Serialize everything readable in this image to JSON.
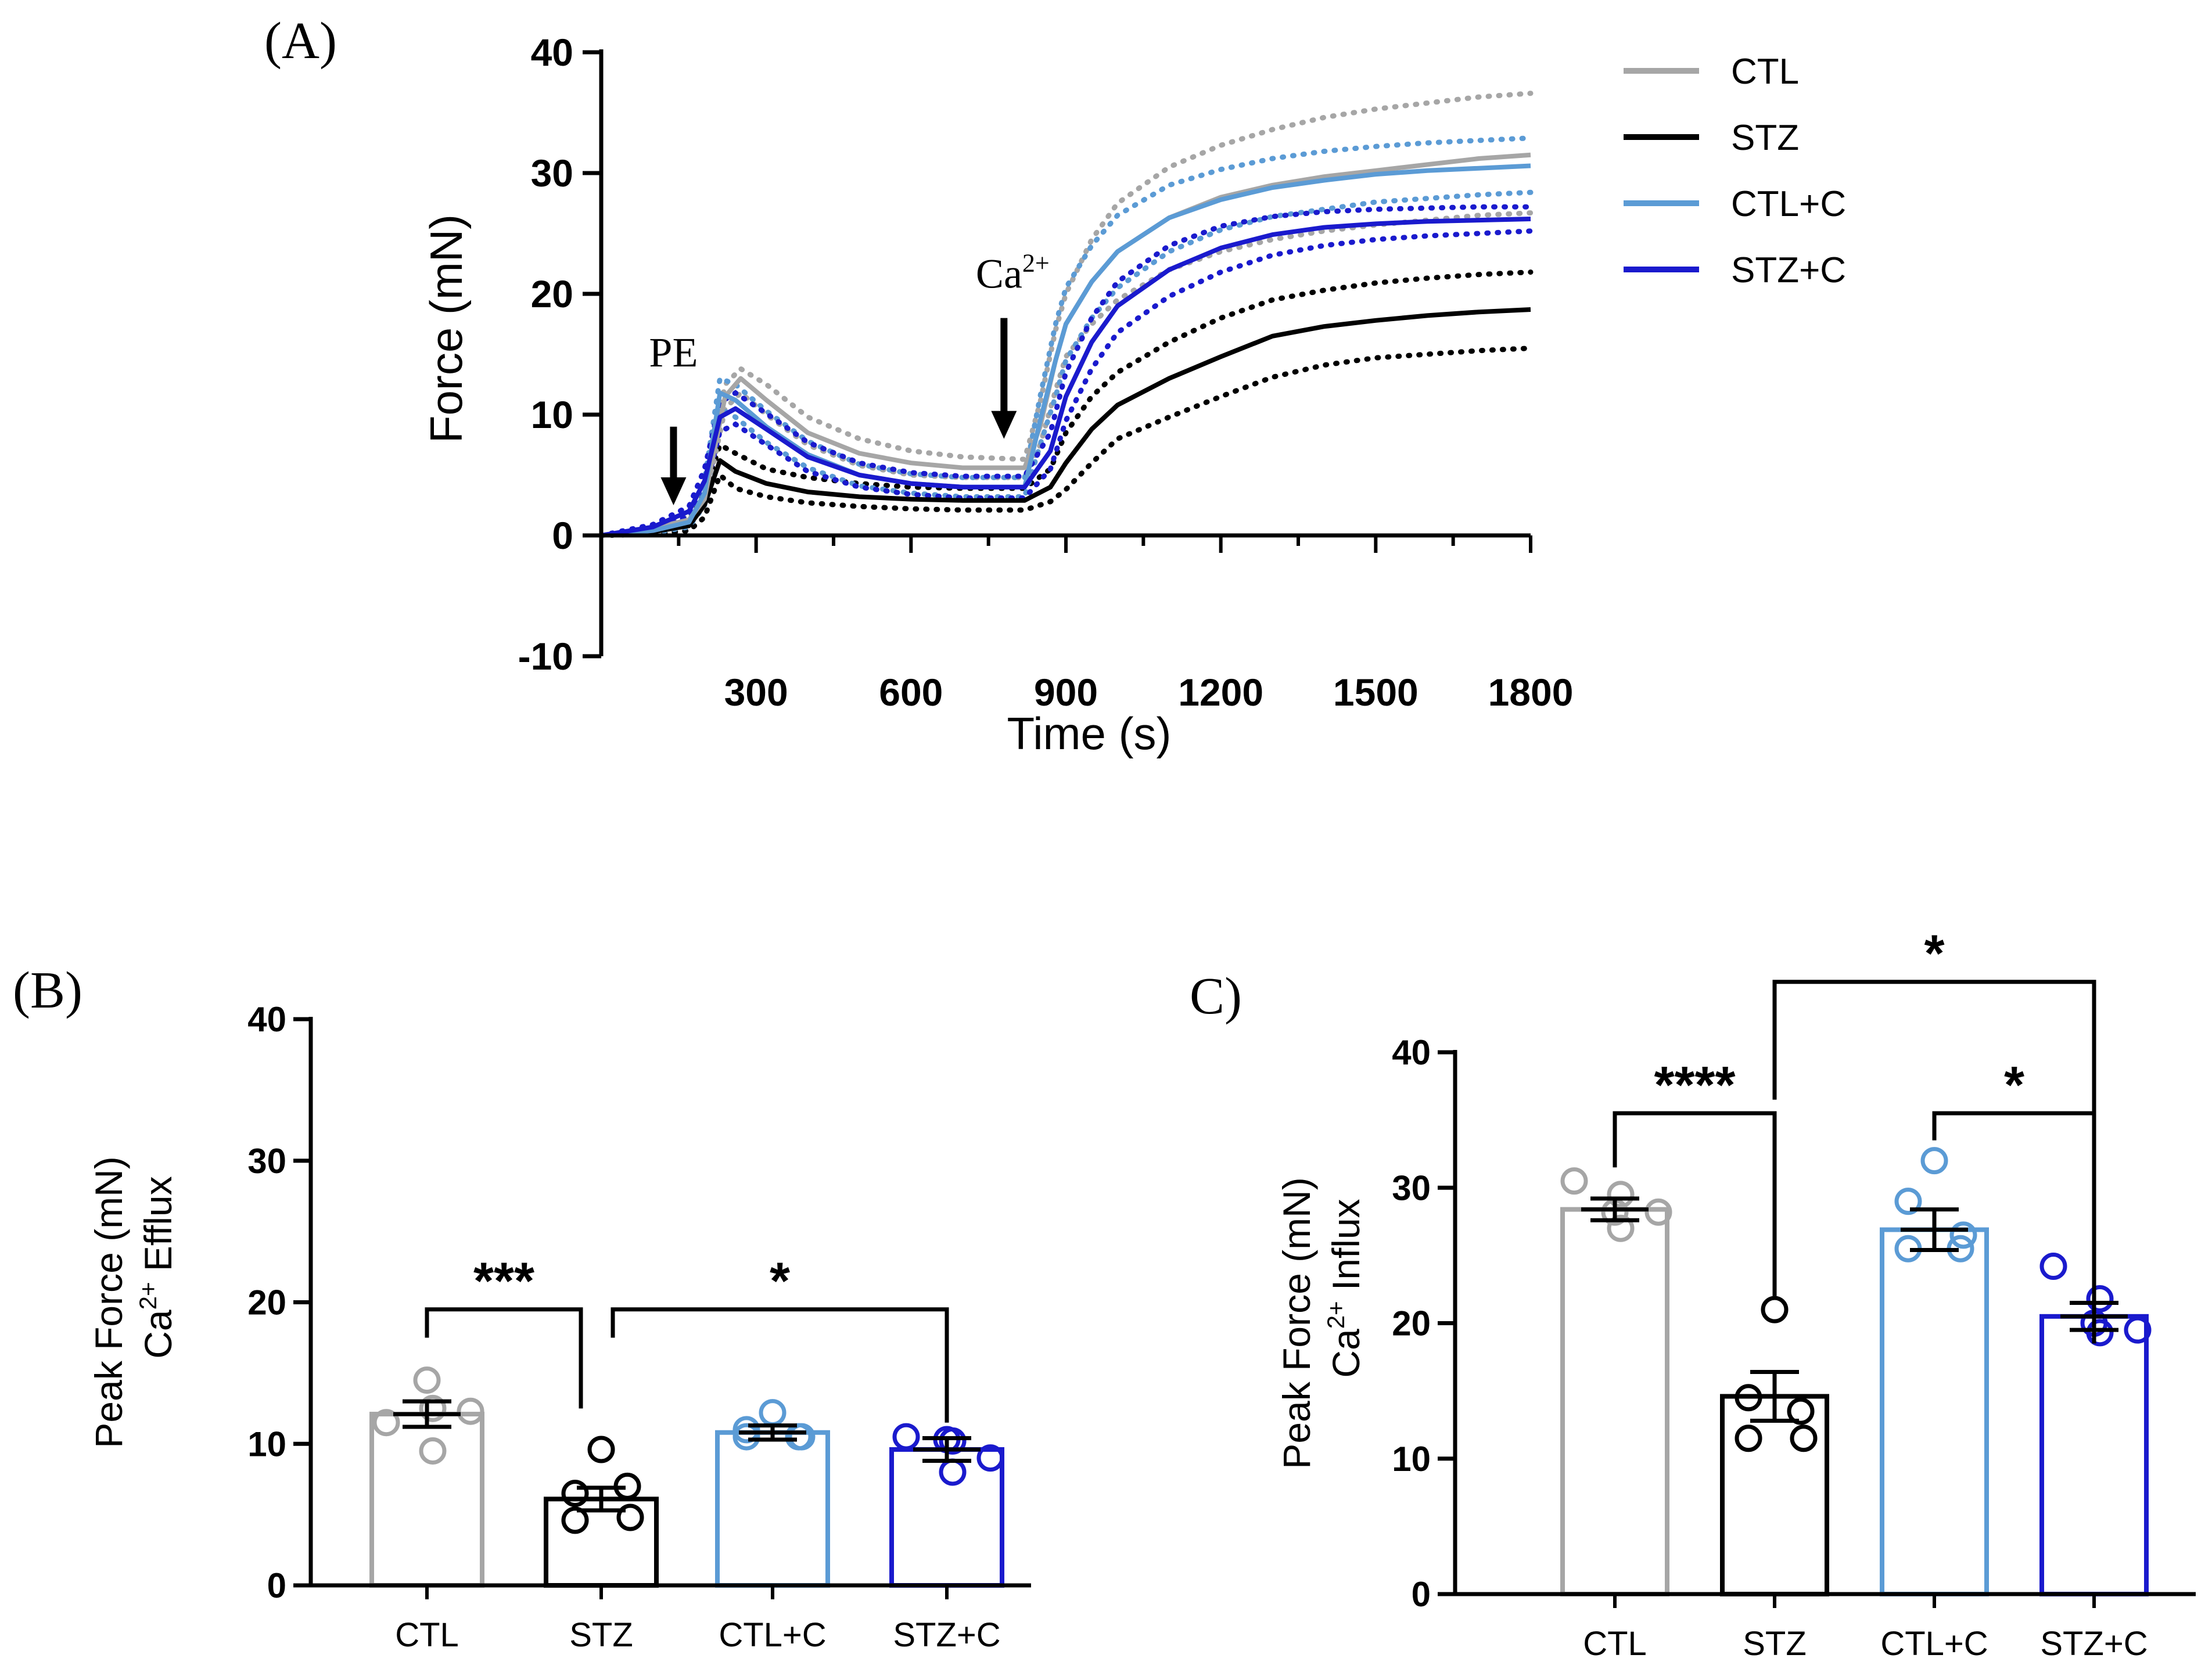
{
  "panel_labels": {
    "a": "(A)",
    "b": "(B)",
    "c": "C)"
  },
  "colors": {
    "CTL": "#a6a6a6",
    "STZ": "#000000",
    "CTL+C": "#5b9bd5",
    "STZ+C": "#1a1acd"
  },
  "chart_data": [
    {
      "id": "A",
      "type": "line",
      "title": "",
      "xlabel": "Time (s)",
      "ylabel": "Force (mN)",
      "xlim": [
        0,
        1800
      ],
      "ylim": [
        -10,
        40
      ],
      "xticks": [
        300,
        600,
        900,
        1200,
        1500,
        1800
      ],
      "xtick_labels": [
        "300",
        "600",
        "900",
        "1200",
        "1500",
        "1800"
      ],
      "yticks": [
        -10,
        0,
        10,
        20,
        30,
        40
      ],
      "ytick_labels": [
        "-10",
        "0",
        "10",
        "20",
        "30",
        "40"
      ],
      "legend": {
        "position": "top-right",
        "entries": [
          "CTL",
          "STZ",
          "CTL+C",
          "STZ+C"
        ]
      },
      "annotations": [
        {
          "text": "PE",
          "x": 140,
          "arrow_from": 9,
          "arrow_to": 2.5,
          "text_y": 14
        },
        {
          "text": "Ca",
          "sup": "2+",
          "x": 780,
          "arrow_from": 18,
          "arrow_to": 8,
          "text_y": 20.5
        }
      ],
      "series": [
        {
          "name": "CTL",
          "x": [
            0,
            100,
            170,
            200,
            240,
            270,
            320,
            400,
            500,
            600,
            700,
            820,
            850,
            880,
            900,
            950,
            1000,
            1100,
            1200,
            1300,
            1400,
            1500,
            1600,
            1700,
            1800
          ],
          "mean": [
            0,
            0.6,
            1.3,
            3,
            11.5,
            13,
            11.2,
            8.5,
            6.8,
            6.0,
            5.6,
            5.6,
            9,
            14.5,
            17.5,
            21,
            23.5,
            26.3,
            28,
            29,
            29.7,
            30.2,
            30.7,
            31.2,
            31.5
          ],
          "upper": [
            0,
            0.8,
            1.6,
            3.5,
            12.5,
            13.8,
            12.5,
            9.8,
            8.0,
            7.0,
            6.5,
            6.3,
            11,
            17,
            20,
            24.5,
            27.5,
            30.5,
            32.3,
            33.6,
            34.6,
            35.3,
            35.8,
            36.3,
            36.6
          ],
          "lower": [
            0,
            0.4,
            1.0,
            2.5,
            10.5,
            11.8,
            10,
            7.5,
            5.8,
            5.0,
            4.8,
            4.8,
            7.5,
            12,
            14.8,
            17.5,
            19.5,
            22,
            23.5,
            24.5,
            25.2,
            25.7,
            26.1,
            26.5,
            26.7
          ]
        },
        {
          "name": "STZ",
          "x": [
            0,
            100,
            170,
            200,
            230,
            260,
            320,
            400,
            500,
            600,
            700,
            820,
            870,
            900,
            950,
            1000,
            1100,
            1200,
            1300,
            1400,
            1500,
            1600,
            1700,
            1800
          ],
          "mean": [
            0,
            0.3,
            0.8,
            2.5,
            6.2,
            5.3,
            4.3,
            3.6,
            3.2,
            3.0,
            2.9,
            2.9,
            4.0,
            6.0,
            8.8,
            10.8,
            13,
            14.8,
            16.5,
            17.3,
            17.8,
            18.2,
            18.5,
            18.7
          ],
          "upper": [
            0,
            0.5,
            1.2,
            3.5,
            7.5,
            6.8,
            5.5,
            4.8,
            4.3,
            4.0,
            3.9,
            3.9,
            5.5,
            8.5,
            11.5,
            13.5,
            16,
            18,
            19.5,
            20.3,
            20.9,
            21.3,
            21.6,
            21.8
          ],
          "lower": [
            0,
            0.1,
            0.4,
            1.5,
            5,
            3.9,
            3.2,
            2.7,
            2.4,
            2.2,
            2.1,
            2.1,
            2.8,
            3.8,
            6,
            8,
            9.8,
            11.5,
            13.1,
            14.1,
            14.7,
            15.0,
            15.3,
            15.5
          ]
        },
        {
          "name": "CTL+C",
          "x": [
            0,
            100,
            170,
            200,
            230,
            260,
            320,
            400,
            500,
            600,
            700,
            820,
            850,
            880,
            900,
            950,
            1000,
            1100,
            1200,
            1300,
            1400,
            1500,
            1600,
            1700,
            1800
          ],
          "mean": [
            0,
            0.4,
            1.1,
            3.5,
            11.8,
            11.2,
            9.0,
            6.7,
            5.0,
            4.3,
            4.0,
            4.0,
            9.5,
            14.5,
            17.5,
            21,
            23.5,
            26.3,
            27.8,
            28.8,
            29.4,
            29.9,
            30.2,
            30.4,
            30.6
          ],
          "upper": [
            0,
            0.6,
            1.5,
            4.5,
            13.0,
            12.5,
            10.3,
            7.8,
            5.9,
            5.1,
            4.8,
            4.8,
            11.5,
            17.5,
            20.5,
            24,
            26.5,
            29,
            30.3,
            31.2,
            31.8,
            32.2,
            32.5,
            32.7,
            32.9
          ],
          "lower": [
            0,
            0.2,
            0.7,
            2.5,
            10.5,
            9.8,
            7.7,
            5.6,
            4.1,
            3.5,
            3.2,
            3.2,
            7.5,
            11.5,
            14.5,
            18,
            20.5,
            23.5,
            25.3,
            26.4,
            27.0,
            27.6,
            27.9,
            28.2,
            28.4
          ]
        },
        {
          "name": "STZ+C",
          "x": [
            0,
            100,
            170,
            200,
            230,
            260,
            320,
            400,
            500,
            600,
            700,
            820,
            870,
            900,
            950,
            1000,
            1100,
            1200,
            1300,
            1400,
            1500,
            1600,
            1700,
            1800
          ],
          "mean": [
            0,
            0.7,
            2.0,
            4.5,
            9.8,
            10.5,
            8.8,
            6.5,
            5.0,
            4.3,
            4.0,
            4.0,
            7.0,
            11.5,
            16,
            19,
            22,
            23.8,
            24.9,
            25.5,
            25.8,
            26.0,
            26.1,
            26.2
          ],
          "upper": [
            0,
            0.9,
            2.4,
            5.5,
            11.0,
            11.8,
            10.1,
            7.7,
            6.0,
            5.2,
            4.9,
            4.9,
            8.5,
            13.5,
            18,
            21,
            24,
            25.6,
            26.4,
            26.8,
            27.0,
            27.1,
            27.2,
            27.2
          ],
          "lower": [
            0,
            0.5,
            1.6,
            3.5,
            8.6,
            9.2,
            7.5,
            5.3,
            4.0,
            3.4,
            3.1,
            3.1,
            5.5,
            9.5,
            13.8,
            16.8,
            19.8,
            21.8,
            23.2,
            24.0,
            24.5,
            24.8,
            25.0,
            25.2
          ]
        }
      ]
    },
    {
      "id": "B",
      "type": "bar",
      "title": "",
      "xlabel": "",
      "ylabel": "Peak Force (mN)",
      "ylabel2": "Ca",
      "ylabel2_sup": "2+",
      "ylabel2_rest": " Efflux",
      "ylim": [
        0,
        40
      ],
      "yticks": [
        0,
        10,
        20,
        30,
        40
      ],
      "ytick_labels": [
        "0",
        "10",
        "20",
        "30",
        "40"
      ],
      "categories": [
        "CTL",
        "STZ",
        "CTL+C",
        "STZ+C"
      ],
      "values": [
        12.1,
        6.1,
        10.8,
        9.6
      ],
      "sem": [
        0.9,
        0.8,
        0.5,
        0.8
      ],
      "points": [
        [
          11.5,
          12.5,
          14.5,
          12.3,
          9.5
        ],
        [
          9.6,
          6.5,
          4.8,
          4.6,
          7.0
        ],
        [
          12.2,
          11.0,
          10.5,
          10.5,
          10.5
        ],
        [
          10.5,
          8.0,
          10.3,
          9.0,
          10.2
        ]
      ],
      "significance": [
        {
          "from": 0,
          "to": 1,
          "y": 19.5,
          "label": "***"
        },
        {
          "from": 1,
          "to": 3,
          "y": 19.5,
          "label": "*"
        }
      ]
    },
    {
      "id": "C",
      "type": "bar",
      "title": "",
      "xlabel": "",
      "ylabel": "Peak Force (mN)",
      "ylabel2": "Ca",
      "ylabel2_sup": "2+",
      "ylabel2_rest": " Influx",
      "ylim": [
        0,
        40
      ],
      "yticks": [
        0,
        10,
        20,
        30,
        40
      ],
      "ytick_labels": [
        "0",
        "10",
        "20",
        "30",
        "40"
      ],
      "categories": [
        "CTL",
        "STZ",
        "CTL+C",
        "STZ+C"
      ],
      "values": [
        28.4,
        14.6,
        26.9,
        20.5
      ],
      "sem": [
        0.8,
        1.8,
        1.5,
        1.0
      ],
      "points": [
        [
          30.5,
          29.5,
          28.2,
          28.2,
          27.0
        ],
        [
          21.0,
          14.5,
          11.5,
          11.5,
          13.5
        ],
        [
          32.0,
          29.0,
          26.5,
          25.5,
          25.5
        ],
        [
          24.2,
          21.8,
          20.0,
          19.5,
          19.3
        ]
      ],
      "significance": [
        {
          "from": 0,
          "to": 1,
          "y": 35.5,
          "label": "****"
        },
        {
          "from": 2,
          "to": 3,
          "y": 35.5,
          "label": "*"
        },
        {
          "from": 1,
          "to": 3,
          "y": 45.2,
          "label": "*"
        }
      ]
    }
  ]
}
